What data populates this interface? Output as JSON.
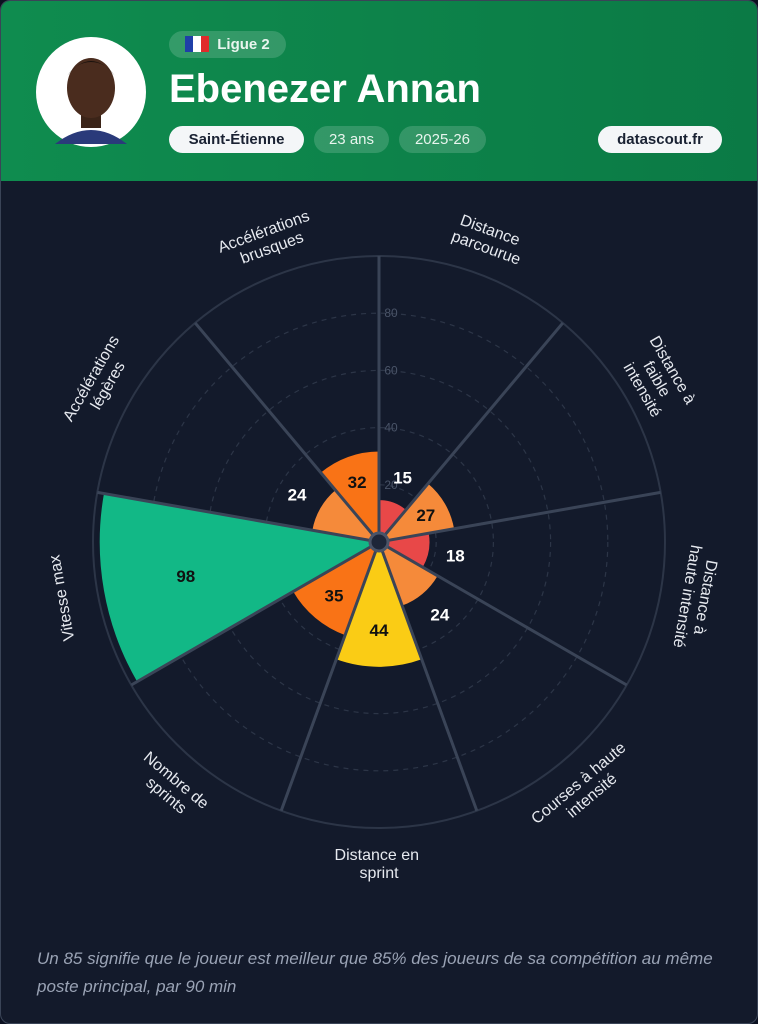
{
  "header": {
    "league": "Ligue 2",
    "name": "Ebenezer Annan",
    "club": "Saint-Étienne",
    "age": "23 ans",
    "season": "2025-26",
    "site": "datascout.fr"
  },
  "chart_data": {
    "type": "polar_bar",
    "categories": [
      "Distance parcourue",
      "Distance à faible intensité",
      "Distance à haute intensité",
      "Courses à haute intensité",
      "Distance en sprint",
      "Nombre de sprints",
      "Vitesse max",
      "Accélérations légères",
      "Accélérations brusques"
    ],
    "values": [
      15,
      27,
      18,
      24,
      44,
      35,
      98,
      24,
      32
    ],
    "colors": [
      "#e84848",
      "#f58a3a",
      "#e84848",
      "#f58a3a",
      "#facc15",
      "#f97316",
      "#12b886",
      "#f58a3a",
      "#f97316"
    ],
    "ylim": [
      0,
      100
    ],
    "yticks": [
      20,
      40,
      60,
      80
    ],
    "grid": true
  },
  "footnote": "Un 85 signifie que le joueur est meilleur que 85% des joueurs de sa compétition au même poste principal, par 90 min"
}
